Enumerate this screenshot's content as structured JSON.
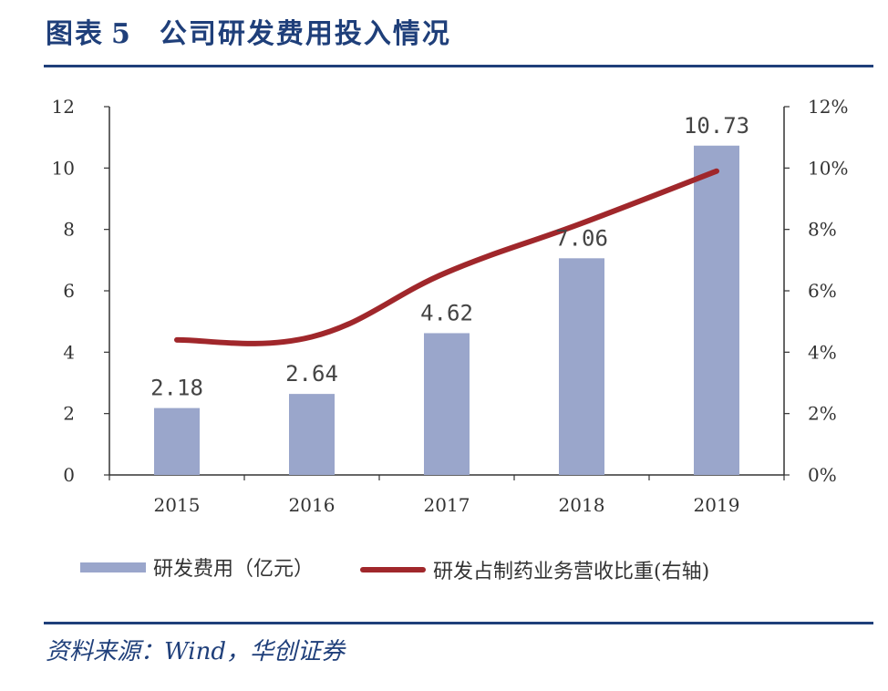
{
  "header": {
    "label": "图表",
    "number": "5",
    "title": "公司研发费用投入情况"
  },
  "chart_data": {
    "type": "bar",
    "categories": [
      "2015",
      "2016",
      "2017",
      "2018",
      "2019"
    ],
    "series": [
      {
        "name": "研发费用（亿元）",
        "type": "bar",
        "axis": "left",
        "color": "#9aa6cb",
        "values": [
          2.18,
          2.64,
          4.62,
          7.06,
          10.73
        ],
        "labels": [
          "2.18",
          "2.64",
          "4.62",
          "7.06",
          "10.73"
        ]
      },
      {
        "name": "研发占制药业务营收比重(右轴)",
        "type": "line",
        "axis": "right",
        "color": "#a0272b",
        "values": [
          4.4,
          4.5,
          6.6,
          8.2,
          9.9
        ]
      }
    ],
    "y_left": {
      "min": 0,
      "max": 12,
      "ticks": [
        "0",
        "2",
        "4",
        "6",
        "8",
        "10",
        "12"
      ]
    },
    "y_right": {
      "min": 0,
      "max": 12,
      "ticks": [
        "0%",
        "2%",
        "4%",
        "6%",
        "8%",
        "10%",
        "12%"
      ]
    },
    "grid": false,
    "legend": "bottom"
  },
  "footer": {
    "source": "资料来源：Wind，华创证券"
  }
}
